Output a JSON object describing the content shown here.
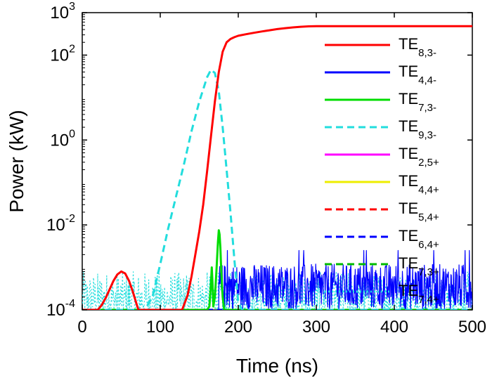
{
  "chart_data": {
    "type": "line",
    "title": "",
    "xlabel": "Time (ns)",
    "ylabel": "Power (kW)",
    "xlim": [
      0,
      500
    ],
    "ylim": [
      0.0001,
      1000
    ],
    "y_scale": "log",
    "grid": false,
    "legend_position": "right",
    "x_ticks": [
      {
        "value": 0,
        "label": "0"
      },
      {
        "value": 100,
        "label": "100"
      },
      {
        "value": 200,
        "label": "200"
      },
      {
        "value": 300,
        "label": "300"
      },
      {
        "value": 400,
        "label": "400"
      },
      {
        "value": 500,
        "label": "500"
      }
    ],
    "y_ticks": [
      {
        "value": 0.0001,
        "base": "10",
        "exp": "-4"
      },
      {
        "value": 0.01,
        "base": "10",
        "exp": "-2"
      },
      {
        "value": 1,
        "base": "10",
        "exp": "0"
      },
      {
        "value": 100,
        "base": "10",
        "exp": "2"
      },
      {
        "value": 1000,
        "base": "10",
        "exp": "3"
      }
    ],
    "series": [
      {
        "name": "TE",
        "sub": "8,3-",
        "color": "#ff0000",
        "style": "solid",
        "x": [
          0,
          20,
          25,
          30,
          35,
          40,
          45,
          50,
          55,
          60,
          65,
          70,
          72,
          75,
          100,
          128,
          135,
          140,
          145,
          150,
          155,
          160,
          165,
          170,
          175,
          180,
          185,
          190,
          195,
          200,
          210,
          220,
          230,
          240,
          250,
          260,
          270,
          280,
          290,
          300,
          310,
          320,
          350,
          400,
          450,
          500
        ],
        "y": [
          0.0001,
          0.0001,
          0.00013,
          0.00019,
          0.0003,
          0.00048,
          0.00068,
          0.0008,
          0.00072,
          0.00048,
          0.00026,
          0.00013,
          0.0001,
          0.0001,
          0.0001,
          0.0001,
          0.00022,
          0.0006,
          0.002,
          0.007,
          0.03,
          0.18,
          1.2,
          8,
          40,
          120,
          200,
          240,
          265,
          285,
          310,
          335,
          360,
          385,
          410,
          430,
          450,
          465,
          475,
          480,
          482,
          482,
          482,
          482,
          482,
          482
        ]
      },
      {
        "name": "TE",
        "sub": "4,4-",
        "color": "#0000ff",
        "style": "solid",
        "x": [
          175,
          500
        ],
        "y": [
          0.0002,
          0.0015
        ],
        "noise": true
      },
      {
        "name": "TE",
        "sub": "7,3-",
        "color": "#00dd00",
        "style": "solid",
        "x": [
          0,
          160,
          163,
          165,
          166,
          167,
          168,
          170,
          172,
          174,
          175,
          176,
          177,
          178,
          179,
          180,
          182,
          185,
          500
        ],
        "y": [
          0.0001,
          0.0001,
          0.00012,
          0.0004,
          0.001,
          0.0004,
          0.00012,
          0.0002,
          0.0008,
          0.004,
          0.0075,
          0.006,
          0.003,
          0.001,
          0.0004,
          0.0002,
          0.0001,
          0.0001,
          0.0001
        ]
      },
      {
        "name": "TE",
        "sub": "9,3-",
        "color": "#22dddd",
        "style": "dashed",
        "x": [
          0,
          80,
          90,
          100,
          110,
          120,
          130,
          140,
          150,
          160,
          165,
          170,
          175,
          180,
          185,
          190,
          195,
          200,
          205,
          500
        ],
        "y": [
          0.0001,
          0.0001,
          0.0002,
          0.0012,
          0.008,
          0.045,
          0.25,
          1.6,
          8,
          30,
          45,
          38,
          14,
          2,
          0.2,
          0.02,
          0.0015,
          0.00015,
          0.0001,
          0.0001
        ]
      },
      {
        "name": "TE",
        "sub": "2,5+",
        "color": "#ff00ff",
        "style": "solid",
        "x": [
          0,
          500
        ],
        "y": [
          0.0001,
          0.0001
        ]
      },
      {
        "name": "TE",
        "sub": "4,4+",
        "color": "#eeee00",
        "style": "solid",
        "x": [
          0,
          500
        ],
        "y": [
          0.0001,
          0.0001
        ]
      },
      {
        "name": "TE",
        "sub": "5,4+",
        "color": "#ff0000",
        "style": "dashed",
        "x": [
          0,
          500
        ],
        "y": [
          0.0001,
          0.0001
        ]
      },
      {
        "name": "TE",
        "sub": "6,4+",
        "color": "#0000ff",
        "style": "dashed",
        "x": [
          0,
          500
        ],
        "y": [
          0.0001,
          0.0001
        ]
      },
      {
        "name": "TE",
        "sub": "7,3+",
        "color": "#00bb00",
        "style": "dashed",
        "x": [
          0,
          500
        ],
        "y": [
          0.0001,
          0.0001
        ]
      },
      {
        "name": "TE",
        "sub": "7,4+",
        "color": "#22dddd",
        "style": "dotted",
        "x": [
          0,
          170,
          500
        ],
        "y": [
          0.0001,
          0.0001,
          0.0002
        ],
        "noise": true
      }
    ]
  }
}
